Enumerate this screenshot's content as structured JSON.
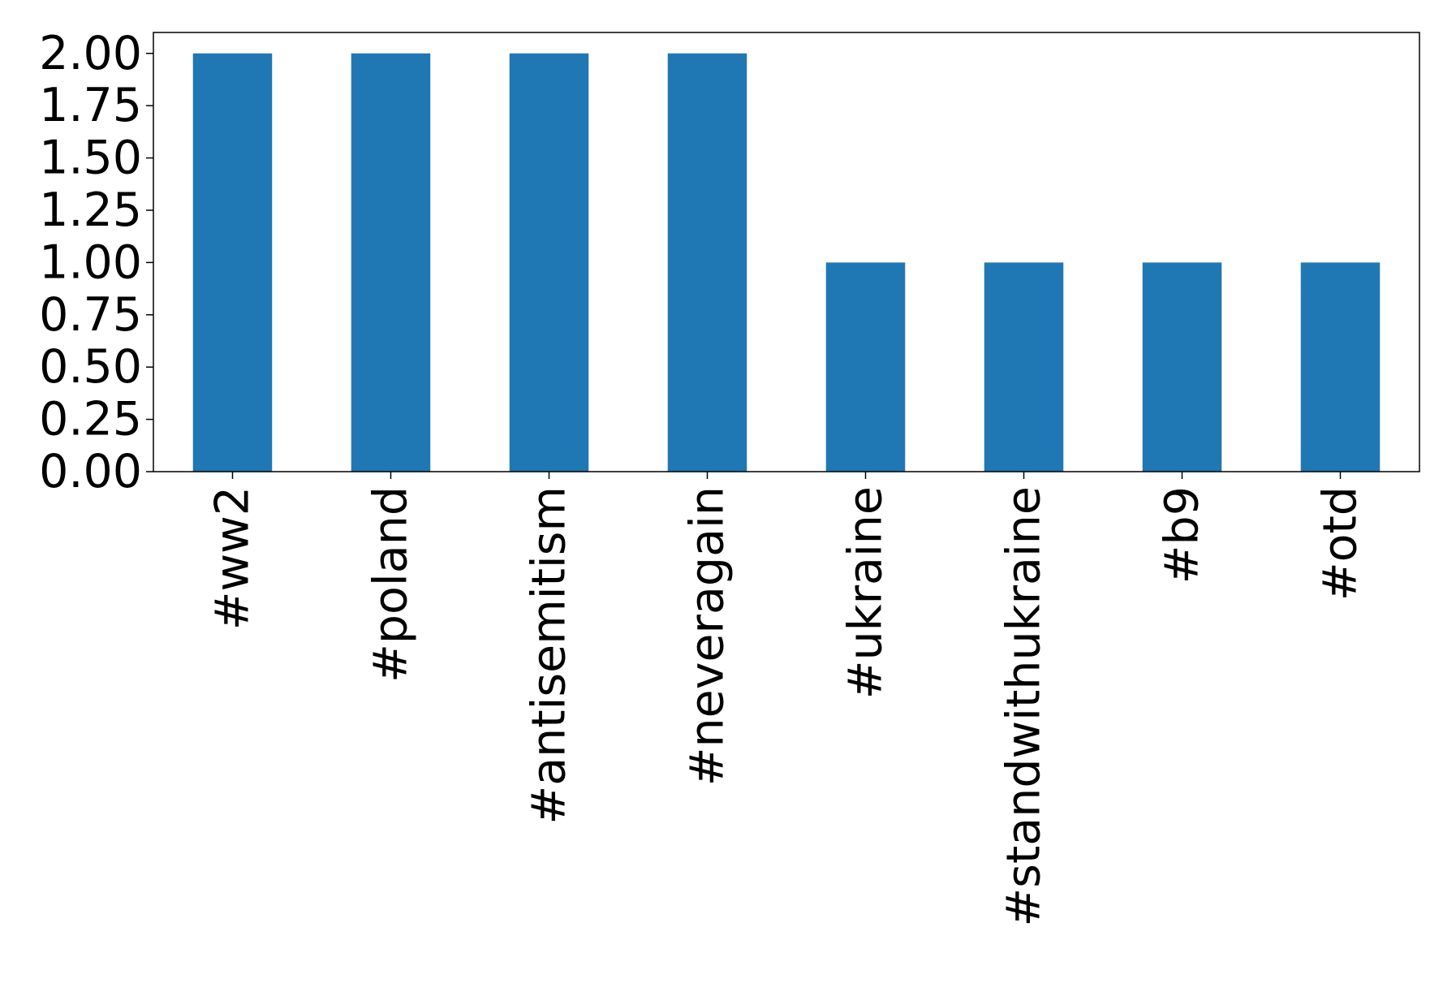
{
  "chart_data": {
    "type": "bar",
    "categories": [
      "#ww2",
      "#poland",
      "#antisemitism",
      "#neveragain",
      "#ukraine",
      "#standwithukraine",
      "#b9",
      "#otd"
    ],
    "values": [
      2,
      2,
      2,
      2,
      1,
      1,
      1,
      1
    ],
    "color": "#1f77b4",
    "ylim": [
      0,
      2.1
    ],
    "yticks": [
      {
        "value": 0,
        "label": "0.00"
      },
      {
        "value": 0.25,
        "label": "0.25"
      },
      {
        "value": 0.5,
        "label": "0.50"
      },
      {
        "value": 0.75,
        "label": "0.75"
      },
      {
        "value": 1,
        "label": "1.00"
      },
      {
        "value": 1.25,
        "label": "1.25"
      },
      {
        "value": 1.5,
        "label": "1.50"
      },
      {
        "value": 1.75,
        "label": "1.75"
      },
      {
        "value": 2,
        "label": "2.00"
      }
    ],
    "grid": false
  }
}
